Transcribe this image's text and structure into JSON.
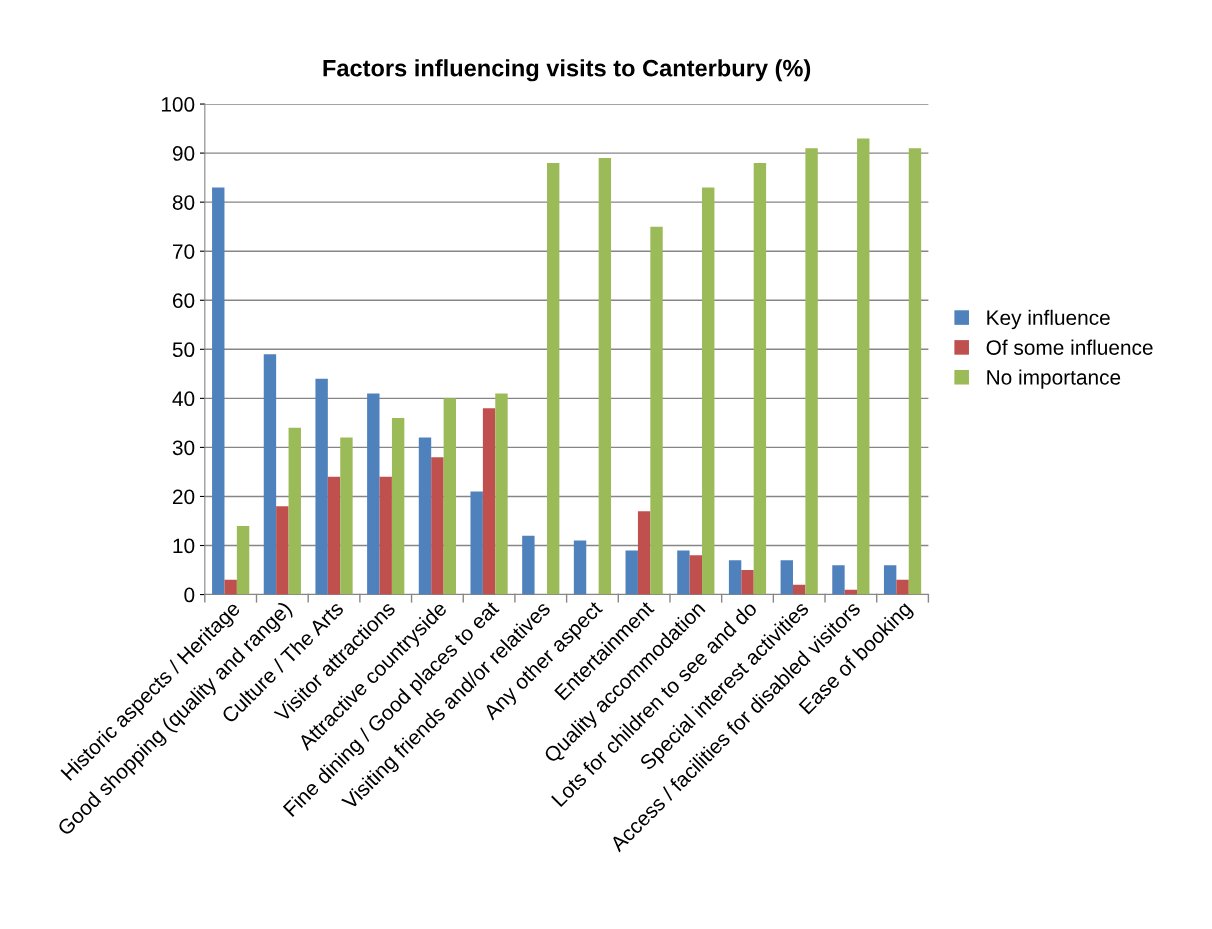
{
  "chart_data": {
    "type": "bar",
    "title": "Factors influencing visits to Canterbury (%)",
    "categories": [
      "Historic aspects / Heritage",
      "Good shopping (quality and range)",
      "Culture / The Arts",
      "Visitor attractions",
      "Attractive countryside",
      "Fine dining / Good places to eat",
      "Visiting friends and/or relatives",
      "Any other aspect",
      "Entertainment",
      "Quality accommodation",
      "Lots for children to see and do",
      "Special interest activities",
      "Access / facilities for disabled visitors",
      "Ease of booking"
    ],
    "series": [
      {
        "name": "Key influence",
        "color": "#4f81bd",
        "values": [
          83,
          49,
          44,
          41,
          32,
          21,
          12,
          11,
          9,
          9,
          7,
          7,
          6,
          6
        ]
      },
      {
        "name": "Of some influence",
        "color": "#c0504d",
        "values": [
          3,
          18,
          24,
          24,
          28,
          38,
          0,
          0,
          17,
          8,
          5,
          2,
          1,
          3
        ]
      },
      {
        "name": "No importance",
        "color": "#9bbb59",
        "values": [
          14,
          34,
          32,
          36,
          40,
          41,
          88,
          89,
          75,
          83,
          88,
          91,
          93,
          91
        ]
      }
    ],
    "ylim": [
      0,
      100
    ],
    "yticks": [
      0,
      10,
      20,
      30,
      40,
      50,
      60,
      70,
      80,
      90,
      100
    ],
    "grid": "y",
    "legend": "right"
  }
}
